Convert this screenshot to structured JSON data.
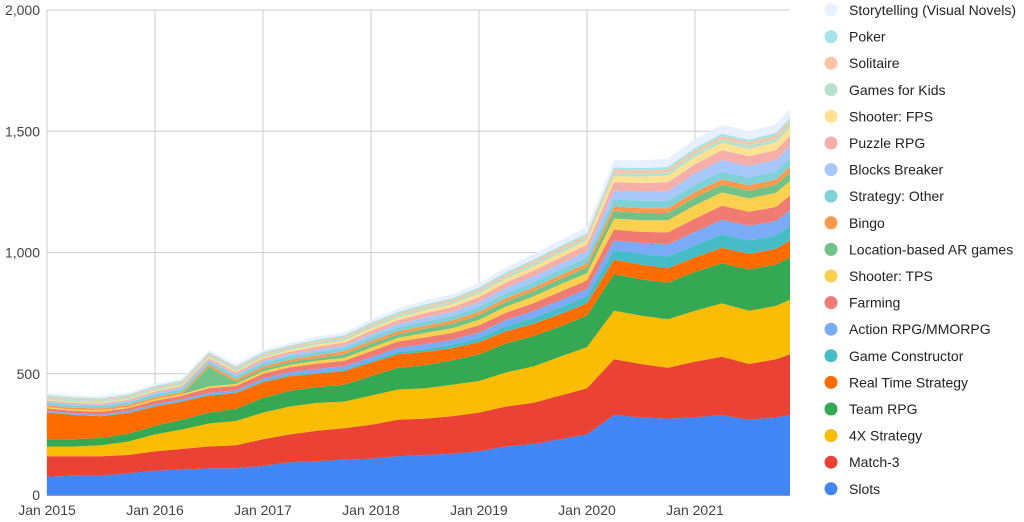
{
  "chart_data": {
    "type": "area",
    "stacked": true,
    "title": "",
    "xlabel": "",
    "ylabel": "",
    "ylim": [
      0,
      2000
    ],
    "y_ticks": [
      0,
      500,
      1000,
      1500,
      2000
    ],
    "y_tick_labels": [
      "0",
      "500",
      "1,000",
      "1,500",
      "2,000"
    ],
    "x_tick_labels": [
      "Jan 2015",
      "Jan 2016",
      "Jan 2017",
      "Jan 2018",
      "Jan 2019",
      "Jan 2020",
      "Jan 2021"
    ],
    "x_range_years": [
      2015.0,
      2021.88
    ],
    "grid": true,
    "legend_position": "right",
    "x": [
      2015.0,
      2015.25,
      2015.5,
      2015.75,
      2016.0,
      2016.25,
      2016.5,
      2016.75,
      2017.0,
      2017.25,
      2017.5,
      2017.75,
      2018.0,
      2018.25,
      2018.5,
      2018.75,
      2019.0,
      2019.25,
      2019.5,
      2019.75,
      2020.0,
      2020.25,
      2020.5,
      2020.75,
      2021.0,
      2021.25,
      2021.5,
      2021.75,
      2021.88
    ],
    "series": [
      {
        "name": "Slots",
        "color": "#4285f4",
        "values": [
          75,
          80,
          80,
          90,
          100,
          105,
          110,
          110,
          120,
          135,
          140,
          145,
          150,
          160,
          165,
          170,
          180,
          200,
          210,
          230,
          250,
          330,
          320,
          315,
          320,
          330,
          310,
          320,
          330
        ]
      },
      {
        "name": "Match-3",
        "color": "#ea4335",
        "values": [
          85,
          80,
          80,
          75,
          80,
          85,
          90,
          95,
          110,
          115,
          125,
          130,
          140,
          150,
          150,
          155,
          160,
          165,
          170,
          180,
          190,
          230,
          220,
          210,
          230,
          240,
          230,
          240,
          250
        ]
      },
      {
        "name": "4X Strategy",
        "color": "#fbbc04",
        "values": [
          40,
          40,
          45,
          55,
          70,
          80,
          95,
          100,
          110,
          115,
          115,
          110,
          120,
          125,
          125,
          130,
          130,
          140,
          150,
          160,
          170,
          200,
          200,
          200,
          210,
          220,
          220,
          220,
          225
        ]
      },
      {
        "name": "Team RPG",
        "color": "#34a853",
        "values": [
          30,
          30,
          30,
          32,
          35,
          40,
          45,
          50,
          60,
          65,
          65,
          70,
          80,
          90,
          95,
          100,
          110,
          120,
          125,
          125,
          130,
          150,
          150,
          150,
          160,
          165,
          170,
          170,
          175
        ]
      },
      {
        "name": "Real Time Strategy",
        "color": "#ff6d01",
        "values": [
          110,
          100,
          90,
          85,
          80,
          75,
          70,
          65,
          65,
          60,
          55,
          55,
          55,
          55,
          55,
          50,
          50,
          50,
          50,
          50,
          50,
          60,
          60,
          60,
          60,
          65,
          65,
          65,
          70
        ]
      },
      {
        "name": "Game Constructor",
        "color": "#46bdc6",
        "values": [
          2,
          2,
          2,
          3,
          3,
          3,
          4,
          4,
          5,
          5,
          5,
          6,
          8,
          10,
          12,
          15,
          18,
          22,
          25,
          28,
          30,
          40,
          45,
          48,
          50,
          55,
          55,
          55,
          60
        ]
      },
      {
        "name": "Action RPG/MMORPG",
        "color": "#7baaf7",
        "values": [
          5,
          5,
          5,
          6,
          6,
          7,
          8,
          8,
          10,
          12,
          15,
          15,
          15,
          18,
          20,
          20,
          22,
          25,
          28,
          30,
          30,
          40,
          45,
          50,
          55,
          60,
          60,
          60,
          65
        ]
      },
      {
        "name": "Farming",
        "color": "#f07b72",
        "values": [
          10,
          10,
          12,
          12,
          15,
          15,
          18,
          18,
          20,
          20,
          22,
          22,
          25,
          25,
          28,
          28,
          30,
          30,
          32,
          35,
          35,
          45,
          45,
          50,
          55,
          58,
          58,
          58,
          60
        ]
      },
      {
        "name": "Shooter: TPS",
        "color": "#fcd04f",
        "values": [
          5,
          5,
          5,
          5,
          6,
          6,
          8,
          8,
          10,
          10,
          12,
          12,
          15,
          15,
          18,
          20,
          22,
          25,
          28,
          30,
          30,
          45,
          48,
          50,
          55,
          55,
          55,
          58,
          60
        ]
      },
      {
        "name": "Location-based AR games",
        "color": "#71c287",
        "values": [
          0,
          0,
          0,
          0,
          0,
          0,
          80,
          10,
          10,
          12,
          12,
          15,
          15,
          15,
          18,
          18,
          20,
          20,
          22,
          22,
          25,
          30,
          30,
          30,
          32,
          32,
          32,
          33,
          35
        ]
      },
      {
        "name": "Bingo",
        "color": "#ff994d",
        "values": [
          8,
          8,
          8,
          8,
          8,
          8,
          10,
          10,
          10,
          10,
          10,
          12,
          12,
          12,
          12,
          14,
          14,
          15,
          15,
          16,
          16,
          20,
          20,
          20,
          22,
          22,
          22,
          22,
          24
        ]
      },
      {
        "name": "Strategy: Other",
        "color": "#7ed1d7",
        "values": [
          10,
          10,
          10,
          10,
          12,
          12,
          12,
          12,
          14,
          14,
          14,
          14,
          16,
          16,
          18,
          18,
          20,
          20,
          22,
          22,
          24,
          30,
          30,
          30,
          32,
          32,
          32,
          33,
          35
        ]
      },
      {
        "name": "Blocks Breaker",
        "color": "#a8c7fa",
        "values": [
          5,
          5,
          5,
          5,
          6,
          6,
          6,
          7,
          8,
          8,
          10,
          10,
          12,
          14,
          16,
          18,
          20,
          22,
          24,
          25,
          26,
          35,
          38,
          40,
          45,
          48,
          48,
          48,
          50
        ]
      },
      {
        "name": "Puzzle RPG",
        "color": "#f6aea9",
        "values": [
          5,
          5,
          5,
          6,
          6,
          7,
          8,
          8,
          10,
          10,
          12,
          12,
          14,
          16,
          18,
          18,
          20,
          22,
          24,
          25,
          26,
          35,
          35,
          36,
          38,
          40,
          40,
          40,
          42
        ]
      },
      {
        "name": "Shooter: FPS",
        "color": "#fde293",
        "values": [
          4,
          4,
          4,
          4,
          5,
          5,
          5,
          6,
          6,
          6,
          8,
          8,
          10,
          10,
          12,
          12,
          14,
          15,
          16,
          18,
          18,
          25,
          26,
          28,
          30,
          30,
          30,
          32,
          33
        ]
      },
      {
        "name": "Games for Kids",
        "color": "#b7e1cd",
        "values": [
          8,
          8,
          8,
          8,
          8,
          8,
          8,
          8,
          8,
          8,
          9,
          9,
          10,
          10,
          10,
          10,
          11,
          11,
          12,
          12,
          12,
          14,
          14,
          14,
          15,
          15,
          15,
          15,
          16
        ]
      },
      {
        "name": "Solitaire",
        "color": "#fbc5a3",
        "values": [
          5,
          5,
          5,
          5,
          5,
          5,
          6,
          6,
          6,
          6,
          6,
          7,
          7,
          7,
          8,
          8,
          8,
          9,
          9,
          10,
          10,
          12,
          12,
          12,
          13,
          13,
          13,
          14,
          14
        ]
      },
      {
        "name": "Poker",
        "color": "#a5e3e6",
        "values": [
          5,
          5,
          5,
          5,
          5,
          5,
          5,
          5,
          6,
          6,
          6,
          6,
          6,
          7,
          7,
          7,
          7,
          8,
          8,
          8,
          8,
          10,
          10,
          10,
          10,
          10,
          10,
          10,
          10
        ]
      },
      {
        "name": "Storytelling (Visual Novels)",
        "color": "#e8f0fe",
        "values": [
          8,
          8,
          8,
          8,
          8,
          8,
          10,
          10,
          10,
          10,
          12,
          12,
          14,
          14,
          16,
          16,
          18,
          20,
          22,
          24,
          26,
          30,
          32,
          34,
          36,
          36,
          36,
          36,
          38
        ]
      }
    ]
  }
}
